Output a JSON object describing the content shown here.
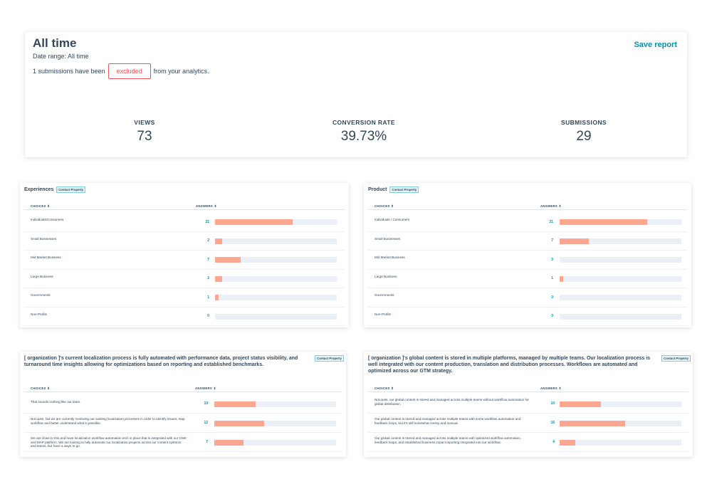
{
  "summary": {
    "title": "All time",
    "date_range": "Date range: All time",
    "excluded_prefix": "1 submissions have been",
    "excluded_button": "excluded",
    "excluded_suffix": "from your analytics.",
    "save_report": "Save report",
    "stats": [
      {
        "label": "VIEWS",
        "value": "73"
      },
      {
        "label": "CONVERSION RATE",
        "value": "39.73%"
      },
      {
        "label": "SUBMISSIONS",
        "value": "29"
      }
    ]
  },
  "panels": {
    "experiences": {
      "title": "Experiences",
      "tag": "Contact Property",
      "col_choices": "CHOICES",
      "col_answers": "ANSWERS",
      "rows": [
        {
          "label": "Individuals/Consumers",
          "answers": 21,
          "fraction": 0.64
        },
        {
          "label": "Small Businesses",
          "answers": 2,
          "fraction": 0.06
        },
        {
          "label": "Mid Market Business",
          "answers": 7,
          "fraction": 0.21
        },
        {
          "label": "Large Business",
          "answers": 2,
          "fraction": 0.06
        },
        {
          "label": "Governments",
          "answers": 1,
          "fraction": 0.03
        },
        {
          "label": "Non-Profits",
          "answers": 0,
          "fraction": 0
        }
      ]
    },
    "product": {
      "title": "Product",
      "tag": "Contact Property",
      "col_choices": "CHOICES",
      "col_answers": "ANSWERS",
      "rows": [
        {
          "label": "Individuals / Consumers",
          "answers": 21,
          "fraction": 0.72
        },
        {
          "label": "Small Businesses",
          "answers": 7,
          "fraction": 0.24
        },
        {
          "label": "Mid Market Business",
          "answers": 0,
          "fraction": 0
        },
        {
          "label": "Large Business",
          "answers": 1,
          "fraction": 0.03
        },
        {
          "label": "Governments",
          "answers": 0,
          "fraction": 0
        },
        {
          "label": "Non-Profits",
          "answers": 0,
          "fraction": 0
        }
      ]
    },
    "localization": {
      "title": "[ organization ]'s current localization process is fully automated with performance data, project status visibility, and turnaround time insights allowing for optimizations based on reporting and established benchmarks.",
      "tag": "Contact Property",
      "col_choices": "CHOICES",
      "col_answers": "ANSWERS",
      "rows": [
        {
          "label": "That sounds nothing like our team.",
          "answers": 10,
          "fraction": 0.34
        },
        {
          "label": "Not quite, but we are currently reviewing our existing localization processes in order to identify issues, map workflow and better understand what is possible",
          "answers": 12,
          "fraction": 0.41
        },
        {
          "label": "We are close to this and have localization workflow automation tech in place that is integrated with our CMS and MAP platform. We are looking to fully automate our localization projects across our content systems and teams, but have a ways to go.",
          "answers": 7,
          "fraction": 0.24
        }
      ]
    },
    "global": {
      "title": "[ organization ]'s global content is stored in multiple platforms, managed by multiple teams. Our localization process is well integrated with our content production, translation and distribution processes. Workflows are automated and optimized across our GTM strategy.",
      "tag": "Contact Property",
      "col_choices": "CHOICES",
      "col_answers": "ANSWERS",
      "rows": [
        {
          "label": "Not quite, our global content is stored and managed across multiple teams without workflow automation for global distribution.",
          "answers": 10,
          "fraction": 0.34
        },
        {
          "label": "Our global content is stored and managed across multiple teams with some workflow automation and feedback loops, but it's still somewhat messy and manual.",
          "answers": 16,
          "fraction": 0.54
        },
        {
          "label": "Our global content is stored and managed across multiple teams with optimized workflow automation, feedback loops, and established business impact reporting integrated into our workflow.",
          "answers": 4,
          "fraction": 0.13
        }
      ]
    }
  },
  "colors": {
    "accent": "#0091ae",
    "bar_fill": "#ff9e88",
    "bar_track": "#eaf0f6",
    "excluded": "#f2545b"
  }
}
